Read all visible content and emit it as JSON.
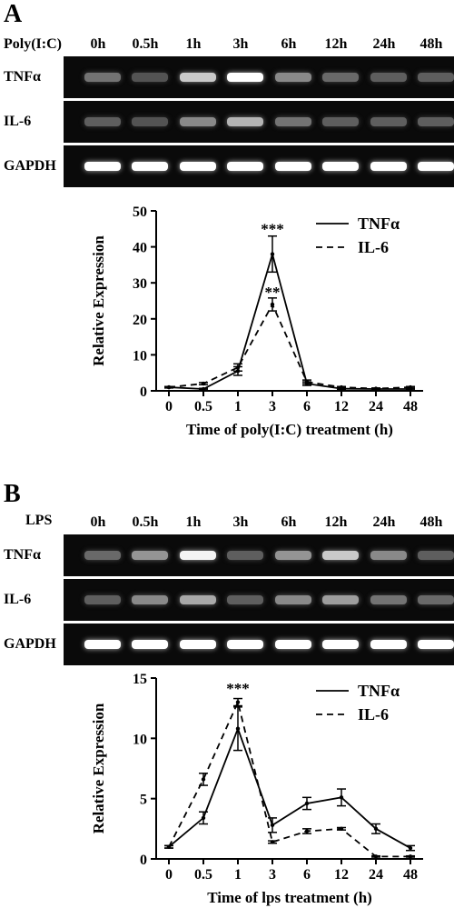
{
  "panels": [
    {
      "letter": "A",
      "treatment": "Poly(I:C)",
      "lanes": [
        "0h",
        "0.5h",
        "1h",
        "3h",
        "6h",
        "12h",
        "24h",
        "48h"
      ],
      "gel_rows": [
        {
          "label": "TNFα",
          "intensity": [
            0.35,
            0.2,
            0.75,
            1.0,
            0.45,
            0.3,
            0.25,
            0.25
          ]
        },
        {
          "label": "IL-6",
          "intensity": [
            0.25,
            0.2,
            0.45,
            0.65,
            0.35,
            0.25,
            0.25,
            0.25
          ]
        },
        {
          "label": "GAPDH",
          "intensity": [
            1.0,
            1.0,
            1.0,
            1.0,
            1.0,
            1.0,
            1.0,
            1.0
          ]
        }
      ]
    },
    {
      "letter": "B",
      "treatment": "LPS",
      "lanes": [
        "0h",
        "0.5h",
        "1h",
        "3h",
        "6h",
        "12h",
        "24h",
        "48h"
      ],
      "gel_rows": [
        {
          "label": "TNFα",
          "intensity": [
            0.3,
            0.5,
            0.95,
            0.25,
            0.5,
            0.75,
            0.45,
            0.25
          ]
        },
        {
          "label": "IL-6",
          "intensity": [
            0.25,
            0.45,
            0.6,
            0.25,
            0.45,
            0.55,
            0.35,
            0.3
          ]
        },
        {
          "label": "GAPDH",
          "intensity": [
            1.0,
            1.0,
            1.0,
            1.0,
            1.0,
            1.0,
            1.0,
            1.0
          ]
        }
      ]
    }
  ],
  "chart_data": [
    {
      "type": "line",
      "categories": [
        "0",
        "0.5",
        "1",
        "3",
        "6",
        "12",
        "24",
        "48"
      ],
      "xlabel": "Time of poly(I:C) treatment (h)",
      "ylabel": "Relative Expression",
      "ylim": [
        0,
        50
      ],
      "yticks": [
        0,
        10,
        20,
        30,
        40,
        50
      ],
      "legend_position": "top-right",
      "series": [
        {
          "name": "TNFα",
          "style": "solid",
          "values": [
            1,
            0.5,
            5.5,
            38,
            2,
            0.6,
            0.5,
            0.5
          ],
          "errors": [
            0.2,
            0.2,
            1.2,
            5,
            0.5,
            0.2,
            0.2,
            0.2
          ]
        },
        {
          "name": "IL-6",
          "style": "dashed",
          "values": [
            1,
            2,
            6.5,
            24,
            2.5,
            1,
            0.6,
            1
          ],
          "errors": [
            0.2,
            0.3,
            1,
            1.8,
            0.5,
            0.2,
            0.2,
            0.2
          ]
        }
      ],
      "annotations": [
        {
          "text": "***",
          "category": "3",
          "y": 43.5
        },
        {
          "text": "**",
          "category": "3",
          "y": 26
        }
      ]
    },
    {
      "type": "line",
      "categories": [
        "0",
        "0.5",
        "1",
        "3",
        "6",
        "12",
        "24",
        "48"
      ],
      "xlabel": "Time of lps treatment (h)",
      "ylabel": "Relative Expression",
      "ylim": [
        0,
        15
      ],
      "yticks": [
        0,
        5,
        10,
        15
      ],
      "legend_position": "top-right",
      "series": [
        {
          "name": "TNFα",
          "style": "solid",
          "values": [
            1,
            3.4,
            10.8,
            2.8,
            4.6,
            5.1,
            2.5,
            0.9
          ],
          "errors": [
            0.1,
            0.5,
            1.8,
            0.6,
            0.5,
            0.7,
            0.4,
            0.2
          ]
        },
        {
          "name": "IL-6",
          "style": "dashed",
          "values": [
            1,
            6.6,
            13,
            1.4,
            2.3,
            2.5,
            0.2,
            0.2
          ],
          "errors": [
            0.1,
            0.5,
            0.3,
            0.1,
            0.2,
            0.1,
            0.05,
            0.05
          ]
        }
      ],
      "annotations": [
        {
          "text": "***",
          "category": "1",
          "y": 13.7
        }
      ]
    }
  ]
}
